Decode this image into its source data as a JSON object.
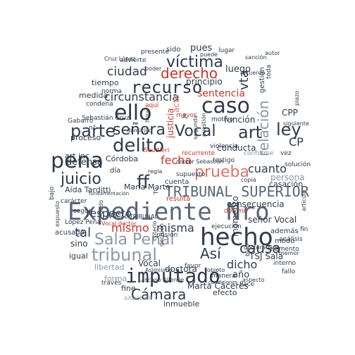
{
  "palette": {
    "dark": "#2f3b4a",
    "slate": "#5a6678",
    "grey": "#8e97a4",
    "red": "#c0392b",
    "salmon": "#d9776a",
    "pink": "#e8a59b"
  },
  "words": {
    "expediente_nro": "Expediente Nro",
    "hecho": "hecho",
    "pena": "pena",
    "imputado": "imputado",
    "caso": "caso",
    "ello": "ello",
    "recurso": "recurso",
    "delito": "delito",
    "tribunal": "tribunal",
    "sala_penal": "Sala Penal",
    "tribunal_superior": "TRIBUNAL SUPERIOR",
    "victima": "víctima",
    "parte": "parte",
    "senora": "señora",
    "vocal": "Vocal",
    "art": "art",
    "ley": "ley",
    "juicio": "juicio",
    "ff": "ff",
    "prueba": "prueba",
    "derecho": "derecho",
    "causa": "causa",
    "camara": "Cámara",
    "asi": "Así",
    "mismo": "mismo",
    "misma": "misma",
    "respecto": "respecto",
    "ciudad": "ciudad",
    "circunstancia": "circunstancia",
    "relacion": "relación",
    "sentencia": "sentencia",
    "cuanto": "cuanto",
    "fecha": "fecha",
    "cp": "CP",
    "cpp": "CPP",
    "defensa": "defensa",
    "tal": "tal",
    "dicho": "dicho",
    "luego": "luego",
    "pues": "pues",
    "vta": "vta",
    "principio": "principio",
    "consecuencia": "consecuencia",
    "funcion": "función",
    "conducta": "conducta",
    "persona": "persona",
    "casacion": "casación",
    "senor_vocal": "señor Vocal",
    "tsj_sala": "TSJ Sala",
    "doctora": "doctora",
    "marta_caceres": "Marta Cáceres",
    "inmueble": "inmueble",
    "ano": "año",
    "efecto": "efecto",
    "forma": "forma",
    "libertad": "libertad",
    "fin": "fin",
    "cordoba": "Córdoba",
    "maria_marta": "María Marta",
    "aida_tarditti": "Aída Tarditti",
    "art_inc": "art inc",
    "proceso": "proceso",
    "medida": "medida",
    "tiempo": "tiempo",
    "justicia": "justicia",
    "acto": "acto",
    "resulta": "resulta",
    "cuenta": "cuenta",
    "dia": "día",
    "sino": "sino",
    "igual": "igual",
    "acusado": "acusado",
    "lopez_pena": "López Peña",
    "ademas": "además",
    "modo": "modo",
    "sido": "sido",
    "lugar": "lugar",
    "advierte": "advierte",
    "presente": "presente",
    "conforme": "conforme",
    "momento": "momento",
    "prision": "prisión",
    "mayor": "mayor",
    "aqui": "aquí",
    "norma": "norma",
    "condena": "condena",
    "sebastian_cruz": "Sebastián Cruz",
    "gabarro": "Gabarró",
    "caracter": "carácter",
    "segun": "según",
    "bajo": "bajo",
    "fine": "fine",
    "situacion": "situación",
    "traves": "través",
    "pace": "Pace",
    "solucion": "solución",
    "vez": "vez",
    "interno": "interno",
    "fallo": "fallo",
    "elemento": "elemento",
    "analisis": "análisis",
    "favor": "favor",
    "manera": "manera",
    "ejecucion": "ejecución",
    "dos_mil": "dos mil",
    "violencia": "violencia",
    "supuesto": "supuesto",
    "testigo": "testigo",
    "copia": "copia",
    "recurrente": "recurrente",
    "motivo": "motivo",
    "cuestion": "cuestión",
    "segunda": "segunda",
    "doctor_sebastian": "doctor Sebastián",
    "vocal_doctor": "Vocal doctor",
    "vocal_tribunal": "VOCAL TRIBUNAL",
    "scudieri": "Scudieri",
    "lascano_allende": "Lascano Allende",
    "asimismo": "Asimismo",
    "cruz_lopez": "Cruz López",
    "gestion": "gestión",
    "todo": "toda",
    "siguiente": "siguiente",
    "memor": "memor",
    "autor": "autor",
    "tc": "TC",
    "ja": "Ja",
    "puede": "puede",
    "poder": "poder",
    "regla": "regla",
    "hora": "hora",
    "objeto": "objeto",
    "criterio": "criterio",
    "aspecto": "aspecto",
    "condiciones": "condiciones",
    "doctora_aida": "doctora Aida",
    "acuerdo": "acuerdo",
    "sancion": "sanción",
    "articulo": "artículo",
    "plazo": "plazo",
    "domicilio": "domicilio",
    "decision": "decisión",
    "expuesto": "expuesto",
    "fundamentacion": "fundamentación",
    "pudo": "pudo",
    "bien": "bien",
    "n": "n°"
  }
}
